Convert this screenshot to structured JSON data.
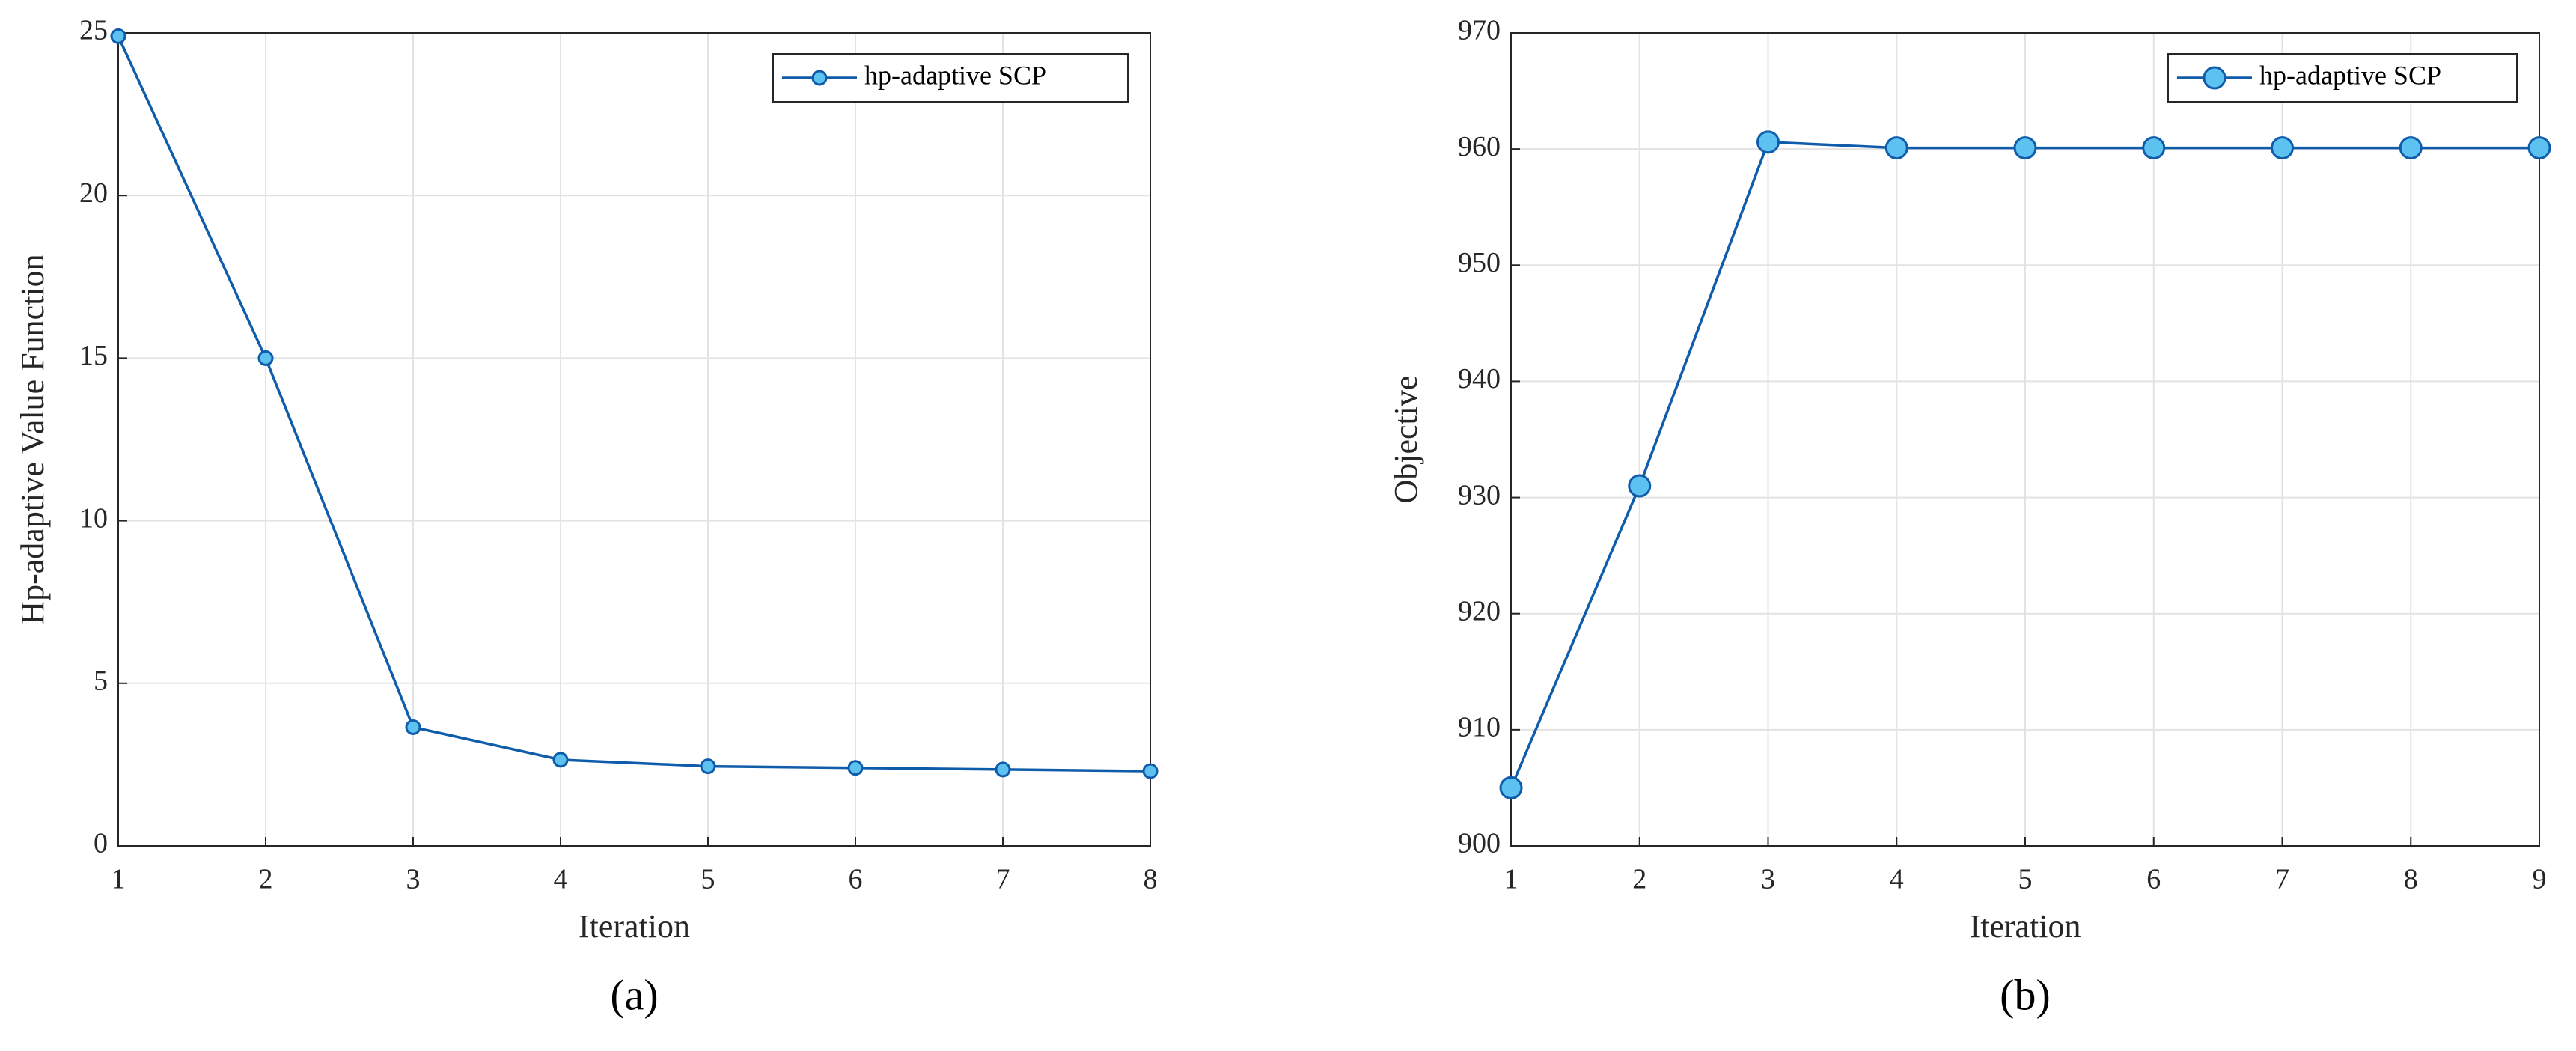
{
  "chart_data": [
    {
      "type": "line",
      "caption": "(a)",
      "xlabel": "Iteration",
      "ylabel": "Hp-adaptive Value Function",
      "x": [
        1,
        2,
        3,
        4,
        5,
        6,
        7,
        8
      ],
      "series": [
        {
          "name": "hp-adaptive SCP",
          "color": "#0f5cab",
          "marker_color": "#5ec2f0",
          "values": [
            24.9,
            15.0,
            3.65,
            2.65,
            2.45,
            2.4,
            2.35,
            2.3
          ]
        }
      ],
      "xlim": [
        1,
        8
      ],
      "xticks": [
        1,
        2,
        3,
        4,
        5,
        6,
        7,
        8
      ],
      "ylim": [
        0,
        25
      ],
      "yticks": [
        0,
        5,
        10,
        15,
        20,
        25
      ],
      "grid": true,
      "legend": "upper right"
    },
    {
      "type": "line",
      "caption": "(b)",
      "xlabel": "Iteration",
      "ylabel": "Objective",
      "x": [
        1,
        2,
        3,
        4,
        5,
        6,
        7,
        8,
        9
      ],
      "series": [
        {
          "name": "hp-adaptive SCP",
          "color": "#0f5cab",
          "marker_color": "#5ec2f0",
          "values": [
            905,
            931,
            960.6,
            960.1,
            960.1,
            960.1,
            960.1,
            960.1,
            960.1
          ]
        }
      ],
      "xlim": [
        1,
        9
      ],
      "xticks": [
        1,
        2,
        3,
        4,
        5,
        6,
        7,
        8,
        9
      ],
      "ylim": [
        900,
        970
      ],
      "yticks": [
        900,
        910,
        920,
        930,
        940,
        950,
        960,
        970
      ],
      "grid": true,
      "legend": "upper right"
    }
  ]
}
